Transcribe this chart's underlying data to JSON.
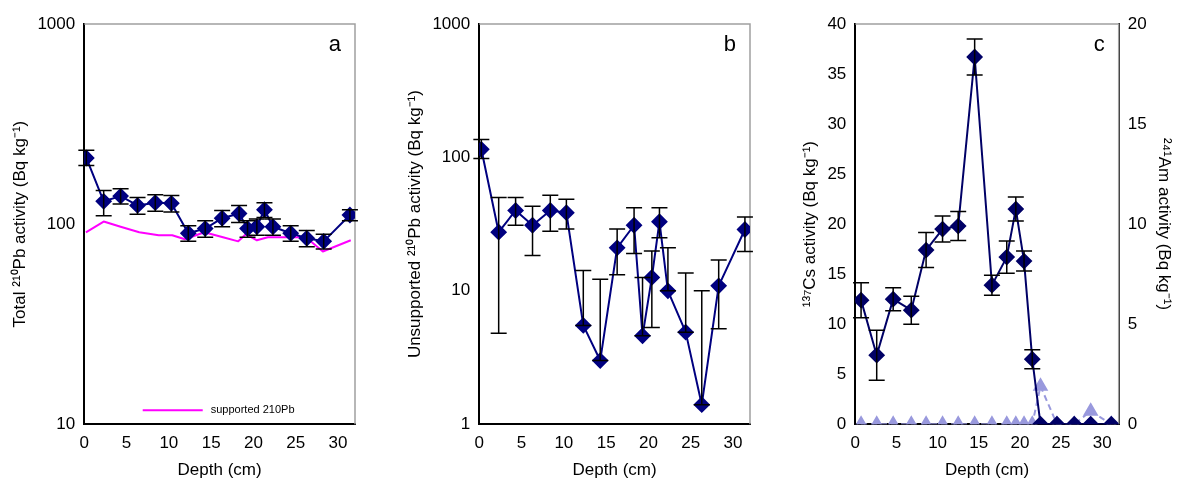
{
  "chart_data": [
    {
      "type": "line",
      "xlabel": "Depth (cm)",
      "ylabel": "Total ²¹⁰Pb activity (Bq kg⁻¹)",
      "log": true,
      "marker": "diamond",
      "legend": "bottom",
      "annotations": [
        "a"
      ],
      "x": [
        0.25,
        2.3,
        4.3,
        6.3,
        8.4,
        10.3,
        12.3,
        14.3,
        16.3,
        18.3,
        19.3,
        20.4,
        21.3,
        22.3,
        24.4,
        26.3,
        28.3,
        31.4
      ],
      "xlim": [
        0,
        32
      ],
      "xticks": [
        0,
        5,
        10,
        15,
        20,
        25,
        30
      ],
      "ylim": [
        10,
        1000
      ],
      "yticks": [
        10,
        100,
        1000
      ],
      "series": [
        {
          "color": "#000080",
          "values": [
            214,
            130,
            138,
            124,
            128,
            127,
            90,
            95,
            107,
            113,
            95,
            97,
            118,
            97,
            90,
            85,
            82,
            111
          ],
          "errors": [
            [
              196,
              234
            ],
            [
              110,
              147
            ],
            12,
            12,
            12,
            12,
            8,
            9,
            10,
            11,
            9,
            9,
            10,
            9,
            8,
            8,
            7,
            7
          ]
        },
        {
          "name": "supported 210Pb",
          "color": "#ff00ff",
          "marker": "none",
          "x": [
            0.2,
            2.3,
            4.3,
            6.5,
            8.8,
            10.4,
            11.9,
            14.2,
            16.4,
            18.2,
            19.1,
            20.4,
            21.7,
            26.2,
            28.2,
            31.5
          ],
          "values": [
            91,
            103,
            97,
            91,
            88,
            88,
            84,
            91,
            86,
            82,
            89,
            83,
            86,
            86,
            73,
            83
          ]
        }
      ]
    },
    {
      "type": "line",
      "xlabel": "Depth (cm)",
      "ylabel": "Unsupported ²¹⁰Pb activity (Bq kg⁻¹)",
      "log": true,
      "marker": "diamond",
      "annotations": [
        "b"
      ],
      "x": [
        0.25,
        2.3,
        4.3,
        6.3,
        8.4,
        10.3,
        12.3,
        14.3,
        16.3,
        18.3,
        19.3,
        20.4,
        21.3,
        22.3,
        24.4,
        26.3,
        28.3,
        31.4
      ],
      "xlim": [
        0,
        32
      ],
      "xticks": [
        0,
        5,
        10,
        15,
        20,
        25,
        30
      ],
      "ylim": [
        1,
        1000
      ],
      "yticks": [
        1,
        10,
        100,
        1000
      ],
      "series": [
        {
          "color": "#000080",
          "values": [
            115,
            27.5,
            40,
            31,
            40,
            38.5,
            5.5,
            3,
            21,
            31,
            4.6,
            12.6,
            33,
            10,
            4.9,
            1.4,
            10.9,
            28.8
          ],
          "errors": [
            [
              98,
              136
            ],
            [
              4.8,
              50
            ],
            [
              31,
              50
            ],
            [
              18.4,
              43
            ],
            [
              28,
              52
            ],
            [
              29,
              48.5
            ],
            [
              5.5,
              14.2
            ],
            [
              3,
              12.2
            ],
            [
              13.2,
              29
            ],
            [
              19,
              42
            ],
            [
              4.6,
              12.6
            ],
            [
              5.3,
              19.9
            ],
            [
              25,
              42
            ],
            [
              10,
              21
            ],
            [
              4.9,
              13.6
            ],
            [
              1.4,
              10
            ],
            [
              5.2,
              17
            ],
            [
              19.7,
              35.8
            ]
          ]
        }
      ]
    },
    {
      "type": "line",
      "xlabel": "Depth (cm)",
      "ylabel": "¹³⁷Cs activity (Bq kg⁻¹)",
      "y2label": "²⁴¹Am activity (Bq kg⁻¹)",
      "marker": "diamond",
      "annotations": [
        "c"
      ],
      "x": [
        0.7,
        2.6,
        4.6,
        6.8,
        8.6,
        10.6,
        12.5,
        14.5,
        16.6,
        18.4,
        19.5,
        20.5,
        21.5,
        22.5,
        24.5,
        26.6,
        28.6,
        31.1
      ],
      "xlim": [
        0,
        32
      ],
      "xticks": [
        0,
        5,
        10,
        15,
        20,
        25,
        30
      ],
      "ylim": [
        0,
        40
      ],
      "yticks": [
        0,
        5,
        10,
        15,
        20,
        25,
        30,
        35,
        40
      ],
      "y2lim": [
        0,
        20
      ],
      "y2ticks": [
        0,
        5,
        10,
        15,
        20
      ],
      "series": [
        {
          "color": "#9999dd",
          "axis": "y2",
          "marker": "triangle",
          "line_style": "dashed",
          "values": [
            0,
            0,
            0,
            0,
            0,
            0,
            0,
            0,
            0,
            0,
            0,
            0,
            0,
            1.9,
            0,
            0,
            0.65,
            0
          ]
        },
        {
          "color": "#000066",
          "values": [
            12.4,
            6.9,
            12.5,
            11.4,
            17.4,
            19.5,
            19.8,
            36.7,
            13.9,
            16.7,
            21.5,
            16.3,
            6.5,
            0,
            0,
            0,
            0,
            0
          ],
          "errors": [
            1.75,
            2.5,
            1.15,
            1.4,
            1.75,
            1.3,
            1.45,
            1.8,
            1.0,
            1.6,
            1.2,
            1.0,
            0.95,
            null,
            null,
            null,
            null,
            null
          ]
        }
      ]
    }
  ]
}
